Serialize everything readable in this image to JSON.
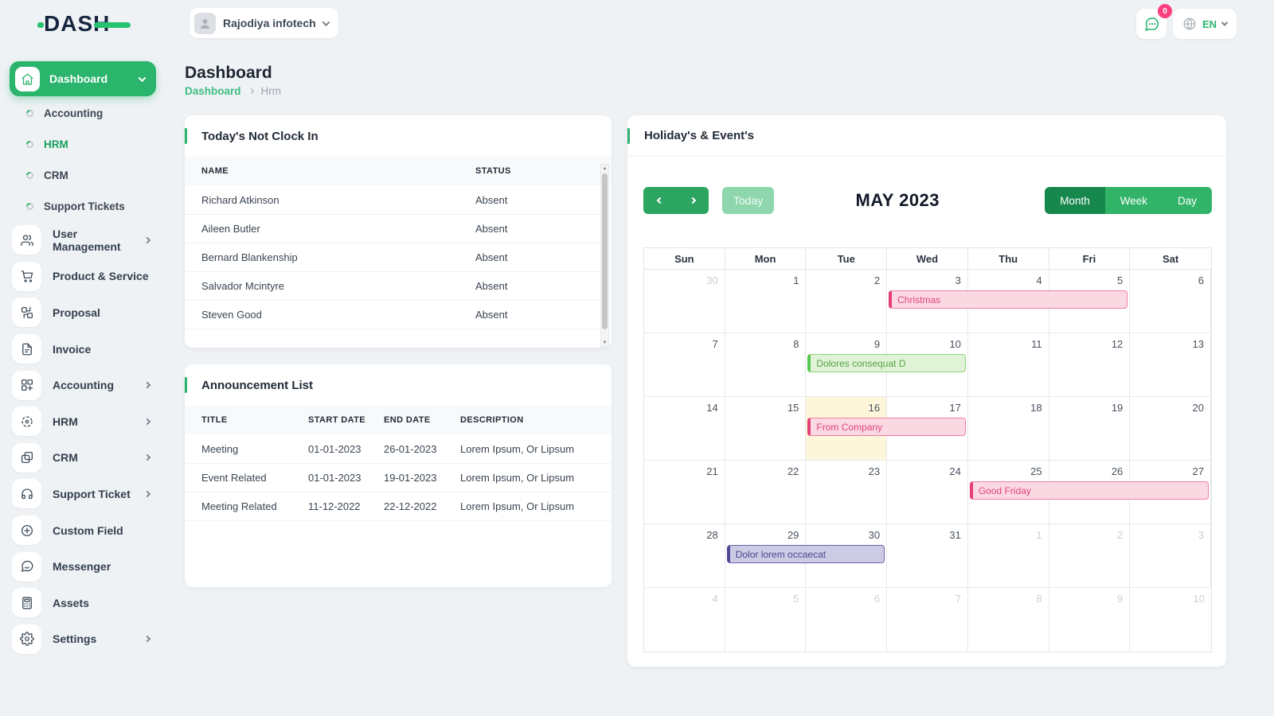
{
  "colors": {
    "primary_green": "#2ab46c",
    "dark_green_active": "#17884d",
    "light_green_today_btn": "#8ed7ac",
    "badge_pink": "#fd3f80",
    "event_pink": "#e53e76",
    "event_green": "#57c84f",
    "event_purple": "#4f4898",
    "today_cell_yellow": "#fdf6da"
  },
  "topbar": {
    "logo_text": "DASH",
    "company": "Rajodiya infotech",
    "chat_badge": "0",
    "lang": "EN"
  },
  "sidebar": {
    "dashboard": {
      "label": "Dashboard",
      "children": [
        {
          "label": "Accounting",
          "active": false
        },
        {
          "label": "HRM",
          "active": true
        },
        {
          "label": "CRM",
          "active": false
        },
        {
          "label": "Support Tickets",
          "active": false
        }
      ]
    },
    "items": [
      {
        "label": "User Management",
        "icon": "users",
        "expandable": true
      },
      {
        "label": "Product & Service",
        "icon": "cart",
        "expandable": false
      },
      {
        "label": "Proposal",
        "icon": "swap",
        "expandable": false
      },
      {
        "label": "Invoice",
        "icon": "file",
        "expandable": false
      },
      {
        "label": "Accounting",
        "icon": "grid-plus",
        "expandable": true
      },
      {
        "label": "HRM",
        "icon": "target",
        "expandable": true
      },
      {
        "label": "CRM",
        "icon": "cards",
        "expandable": true
      },
      {
        "label": "Support Ticket",
        "icon": "headset",
        "expandable": true
      },
      {
        "label": "Custom Field",
        "icon": "plus-circle",
        "expandable": false
      },
      {
        "label": "Messenger",
        "icon": "chat",
        "expandable": false
      },
      {
        "label": "Assets",
        "icon": "calculator",
        "expandable": false
      },
      {
        "label": "Settings",
        "icon": "gear",
        "expandable": true
      }
    ]
  },
  "page": {
    "title": "Dashboard",
    "breadcrumb_home": "Dashboard",
    "breadcrumb_current": "Hrm"
  },
  "clockin": {
    "title": "Today's Not Clock In",
    "columns": [
      "NAME",
      "STATUS"
    ],
    "rows": [
      {
        "name": "Richard Atkinson",
        "status": "Absent"
      },
      {
        "name": "Aileen Butler",
        "status": "Absent"
      },
      {
        "name": "Bernard Blankenship",
        "status": "Absent"
      },
      {
        "name": "Salvador Mcintyre",
        "status": "Absent"
      },
      {
        "name": "Steven Good",
        "status": "Absent"
      }
    ]
  },
  "announcements": {
    "title": "Announcement List",
    "columns": [
      "TITLE",
      "START DATE",
      "END DATE",
      "DESCRIPTION"
    ],
    "rows": [
      {
        "title": "Meeting",
        "start": "01-01-2023",
        "end": "26-01-2023",
        "desc": "Lorem Ipsum, Or Lipsum"
      },
      {
        "title": "Event Related",
        "start": "01-01-2023",
        "end": "19-01-2023",
        "desc": "Lorem Ipsum, Or Lipsum"
      },
      {
        "title": "Meeting Related",
        "start": "11-12-2022",
        "end": "22-12-2022",
        "desc": "Lorem Ipsum, Or Lipsum"
      }
    ]
  },
  "calendar": {
    "title": "Holiday's & Event's",
    "toolbar": {
      "today_label": "Today",
      "month_title": "MAY 2023",
      "views": [
        "Month",
        "Week",
        "Day"
      ],
      "active_view": "Month"
    },
    "dow": [
      "Sun",
      "Mon",
      "Tue",
      "Wed",
      "Thu",
      "Fri",
      "Sat"
    ],
    "weeks": [
      [
        {
          "d": 30,
          "muted": true
        },
        {
          "d": 1
        },
        {
          "d": 2
        },
        {
          "d": 3
        },
        {
          "d": 4
        },
        {
          "d": 5
        },
        {
          "d": 6
        }
      ],
      [
        {
          "d": 7
        },
        {
          "d": 8
        },
        {
          "d": 9
        },
        {
          "d": 10
        },
        {
          "d": 11
        },
        {
          "d": 12
        },
        {
          "d": 13
        }
      ],
      [
        {
          "d": 14
        },
        {
          "d": 15
        },
        {
          "d": 16,
          "today": true
        },
        {
          "d": 17
        },
        {
          "d": 18
        },
        {
          "d": 19
        },
        {
          "d": 20
        }
      ],
      [
        {
          "d": 21
        },
        {
          "d": 22
        },
        {
          "d": 23
        },
        {
          "d": 24
        },
        {
          "d": 25
        },
        {
          "d": 26
        },
        {
          "d": 27
        }
      ],
      [
        {
          "d": 28
        },
        {
          "d": 29
        },
        {
          "d": 30
        },
        {
          "d": 31
        },
        {
          "d": 1,
          "muted": true
        },
        {
          "d": 2,
          "muted": true
        },
        {
          "d": 3,
          "muted": true
        }
      ],
      [
        {
          "d": 4,
          "muted": true
        },
        {
          "d": 5,
          "muted": true
        },
        {
          "d": 6,
          "muted": true
        },
        {
          "d": 7,
          "muted": true
        },
        {
          "d": 8,
          "muted": true
        },
        {
          "d": 9,
          "muted": true
        },
        {
          "d": 10,
          "muted": true
        }
      ]
    ],
    "events": [
      {
        "label": "Christmas",
        "week": 0,
        "col": 3,
        "span": 3,
        "color": "pink"
      },
      {
        "label": "Dolores consequat D",
        "week": 1,
        "col": 2,
        "span": 2,
        "color": "green"
      },
      {
        "label": "From Company",
        "week": 2,
        "col": 2,
        "span": 2,
        "color": "pink"
      },
      {
        "label": "Good Friday",
        "week": 3,
        "col": 4,
        "span": 3,
        "color": "pink"
      },
      {
        "label": "Dolor lorem occaecat",
        "week": 4,
        "col": 1,
        "span": 2,
        "color": "purple"
      }
    ]
  }
}
